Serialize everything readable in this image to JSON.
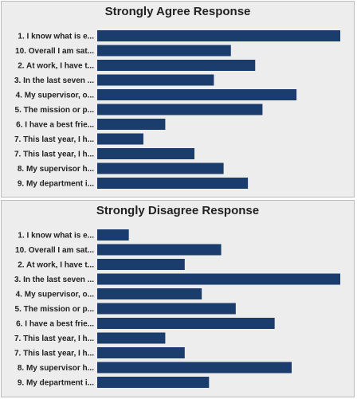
{
  "colors": {
    "bar": "#1a3d6e",
    "panel_bg": "#ededed",
    "border": "#bcbcbc"
  },
  "chart_data": [
    {
      "type": "bar",
      "orientation": "horizontal",
      "title": "Strongly Agree Response",
      "categories": [
        "1. I know what is e...",
        "10. Overall I am sat...",
        "2. At work, I have t...",
        "3. In the last seven ...",
        "4. My supervisor, o...",
        "5. The mission or p...",
        "6. I have a best frie...",
        "7. This last year, I h...",
        "7. This last year, I h...",
        "8. My supervisor h...",
        "9. My department i..."
      ],
      "values": [
        100,
        55,
        65,
        48,
        82,
        68,
        28,
        19,
        40,
        52,
        62
      ],
      "xlim": [
        0,
        100
      ],
      "grid": false,
      "xlabel": "",
      "ylabel": ""
    },
    {
      "type": "bar",
      "orientation": "horizontal",
      "title": "Strongly Disagree Response",
      "categories": [
        "1. I know what is e...",
        "10. Overall I am sat...",
        "2. At work, I have t...",
        "3. In the last seven ...",
        "4. My supervisor, o...",
        "5. The mission or p...",
        "6. I have a best frie...",
        "7. This last year, I h...",
        "7. This last year, I h...",
        "8. My supervisor h...",
        "9. My department i..."
      ],
      "values": [
        13,
        51,
        36,
        100,
        43,
        57,
        73,
        28,
        36,
        80,
        46
      ],
      "xlim": [
        0,
        100
      ],
      "grid": false,
      "xlabel": "",
      "ylabel": ""
    }
  ]
}
